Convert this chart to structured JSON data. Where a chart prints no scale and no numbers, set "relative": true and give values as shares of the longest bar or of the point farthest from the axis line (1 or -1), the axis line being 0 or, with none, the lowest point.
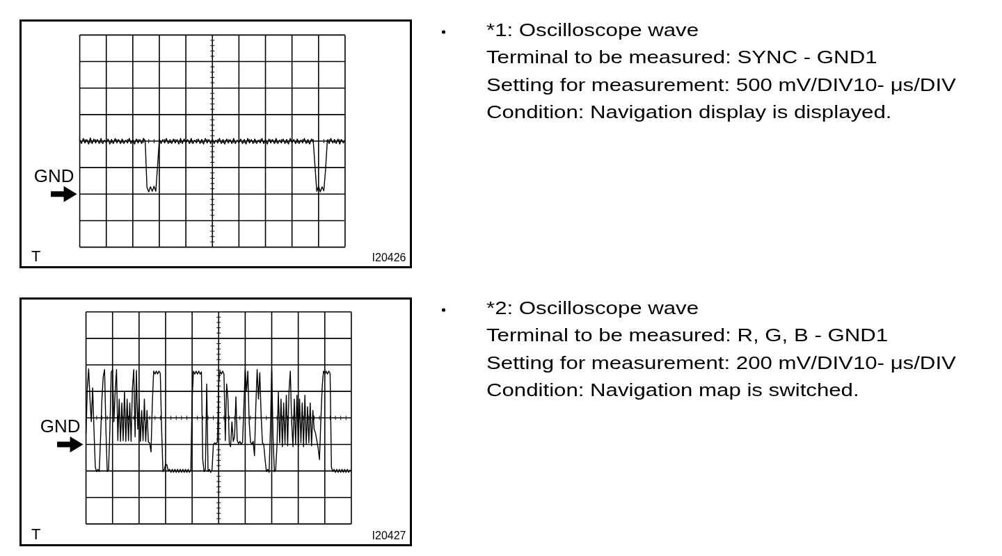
{
  "chart_data": [
    {
      "type": "line",
      "annotations": [
        "GND",
        "*1: Oscilloscope wave",
        "Terminal to be measured: SYNC - GND1",
        "Setting for measurement: 500 mV/DIV10- μs/DIV",
        "Condition: Navigation display is displayed.",
        "T",
        "I20426"
      ],
      "relative": true,
      "grid": true,
      "categories": [
        null,
        null,
        null,
        null,
        null,
        null,
        null,
        null,
        null,
        null,
        null,
        null,
        null,
        null,
        null,
        null,
        null,
        null,
        null,
        null,
        null,
        null,
        null,
        null,
        null,
        null,
        null,
        null,
        null,
        null,
        null,
        null,
        null,
        null,
        null,
        null,
        null,
        null,
        null,
        null,
        null,
        null,
        null,
        null,
        null,
        null,
        null,
        null,
        null,
        null,
        null,
        null,
        null,
        null,
        null,
        null,
        null,
        null,
        null,
        null,
        null,
        null,
        null,
        null,
        null,
        null,
        null,
        null,
        null,
        null,
        null,
        null,
        null,
        null,
        null,
        null,
        null,
        null,
        null,
        null,
        null,
        null,
        null,
        null,
        null,
        null,
        null,
        null,
        null,
        null,
        null,
        null,
        null,
        null,
        null,
        null,
        null,
        null,
        null,
        null,
        null,
        null,
        null,
        null,
        null,
        null,
        null,
        null,
        null,
        null,
        null,
        null,
        null,
        null,
        null,
        null,
        null,
        null,
        null,
        null,
        null,
        null,
        null,
        null,
        null,
        null,
        null,
        null,
        null,
        null,
        null,
        null,
        null,
        null,
        null,
        null,
        null,
        null,
        null,
        null,
        null,
        null,
        null,
        null,
        null,
        null,
        null,
        null,
        null,
        null,
        null
      ],
      "series": [
        {
          "color": "#000000",
          "values": [
            0.96,
            0.9,
            0.99,
            0.91,
            0.97,
            0.89,
            1,
            0.9,
            0.98,
            0.91,
            0.97,
            0.9,
            0.99,
            0.9,
            0.96,
            0.91,
            0.98,
            0.89,
            0.97,
            0.9,
            0.99,
            0.91,
            0.97,
            0.9,
            0.98,
            0.9,
            0.96,
            0.91,
            0.99,
            0.9,
            0.97,
            0.89,
            0.98,
            0.91,
            0.97,
            0.9,
            0.99,
            0.95,
            0.12,
            0.04,
            0.13,
            0.05,
            0.14,
            0.05,
            0.5,
            0.98,
            0.9,
            0.97,
            0.91,
            0.99,
            0.9,
            0.96,
            0.9,
            0.98,
            0.91,
            0.97,
            0.89,
            0.99,
            0.9,
            0.98,
            0.91,
            0.97,
            0.9,
            0.99,
            0.9,
            0.96,
            0.91,
            0.98,
            0.9,
            0.97,
            0.89,
            0.99,
            0.91,
            0.97,
            0.9,
            0.98,
            0.9,
            0.96,
            0.91,
            0.99,
            0.9,
            0.97,
            0.89,
            0.98,
            0.91,
            0.97,
            0.9,
            0.99,
            0.9,
            0.96,
            0.91,
            0.98,
            0.9,
            0.97,
            0.89,
            0.99,
            0.91,
            0.97,
            0.9,
            0.98,
            0.9,
            0.96,
            0.91,
            0.99,
            0.9,
            0.97,
            0.89,
            0.98,
            0.91,
            0.97,
            0.9,
            0.99,
            0.9,
            0.96,
            0.91,
            0.98,
            0.9,
            0.97,
            0.89,
            0.99,
            0.91,
            0.97,
            0.9,
            0.98,
            0.9,
            0.96,
            0.91,
            0.99,
            0.9,
            0.97,
            0.89,
            0.98,
            0.95,
            0.5,
            0.05,
            0.14,
            0.04,
            0.13,
            0.06,
            0.45,
            0.97,
            0.9,
            0.99,
            0.91,
            0.97,
            0.9,
            0.98,
            0.89,
            0.97,
            0.91,
            0.96
          ]
        }
      ]
    },
    {
      "type": "line",
      "annotations": [
        "*2: Oscilloscope wave",
        "Terminal to be measured: R, G, B - GND1",
        "Setting for measurement: 200 mV/DIV10- μs/DIV",
        "Condition: Navigation map is switched.",
        "T",
        "I20427"
      ],
      "relative": true,
      "grid": true,
      "ref_lines": [
        {
          "axis": "y",
          "value": 0,
          "label": "GND"
        }
      ],
      "categories": [
        null,
        null,
        null,
        null,
        null,
        null,
        null,
        null,
        null,
        null,
        null,
        null,
        null,
        null,
        null,
        null,
        null,
        null,
        null,
        null,
        null,
        null,
        null,
        null,
        null,
        null,
        null,
        null,
        null,
        null,
        null,
        null,
        null,
        null,
        null,
        null,
        null,
        null,
        null,
        null,
        null,
        null,
        null,
        null,
        null,
        null,
        null,
        null,
        null,
        null,
        null,
        null,
        null,
        null,
        null,
        null,
        null,
        null,
        null,
        null,
        null,
        null,
        null,
        null,
        null,
        null,
        null,
        null,
        null,
        null,
        null,
        null,
        null,
        null,
        null,
        null,
        null,
        null,
        null,
        null,
        null,
        null,
        null,
        null,
        null,
        null,
        null,
        null,
        null,
        null,
        null,
        null,
        null,
        null,
        null,
        null,
        null,
        null,
        null,
        null,
        null,
        null,
        null,
        null,
        null,
        null,
        null,
        null,
        null,
        null,
        null,
        null,
        null,
        null,
        null,
        null,
        null,
        null,
        null,
        null,
        null,
        null,
        null,
        null,
        null,
        null,
        null,
        null,
        null,
        null,
        null,
        null,
        null,
        null,
        null,
        null,
        null,
        null,
        null,
        null,
        null,
        null,
        null,
        null,
        null,
        null,
        null,
        null,
        null,
        null,
        null,
        null,
        null,
        null,
        null,
        null,
        null,
        null,
        null,
        null,
        null,
        null,
        null,
        null,
        null,
        null,
        null,
        null,
        null,
        null,
        null,
        null,
        null,
        null,
        null,
        null,
        null,
        null,
        null,
        null,
        null,
        null,
        null,
        null,
        null,
        null,
        null,
        null,
        null,
        null,
        null,
        null,
        null,
        null,
        null,
        null,
        null,
        null,
        null,
        null,
        null
      ],
      "series": [
        {
          "color": "#000000",
          "values": [
            0.15,
            0.75,
            1,
            0.6,
            0.3,
            0.75,
            0.2,
            -0.3,
            -0.36,
            -0.33,
            -0.36,
            0.1,
            0.6,
            0.9,
            0.99,
            0.2,
            -0.36,
            -0.34,
            0.2,
            0.95,
            0.99,
            0.3,
            0.7,
            0.99,
            0.05,
            0.6,
            0.04,
            0.55,
            0.05,
            0.7,
            0.04,
            0.6,
            0.05,
            0.55,
            0.04,
            0.75,
            0.99,
            0.1,
            0.98,
            0.2,
            0.6,
            0.04,
            0.45,
            0.05,
            0.6,
            0.04,
            0.45,
            0.03,
            0.02,
            -0.1,
            0.55,
            0.97,
            0.93,
            0.97,
            0.93,
            0.97,
            0.94,
            0.2,
            -0.36,
            -0.33,
            -0.26,
            -0.27,
            -0.35,
            -0.33,
            -0.37,
            -0.33,
            -0.37,
            -0.33,
            -0.37,
            -0.33,
            -0.37,
            -0.33,
            -0.37,
            -0.33,
            -0.37,
            -0.33,
            -0.37,
            -0.33,
            -0.37,
            -0.34,
            0.6,
            0.97,
            0.93,
            0.97,
            0.93,
            0.97,
            0.93,
            0.96,
            -0.2,
            -0.36,
            -0.33,
            0.8,
            -0.36,
            -0.33,
            -0.37,
            -0.34,
            0,
            0.02,
            0.01,
            0.03,
            0.8,
            0.97,
            0.93,
            0.97,
            0.93,
            0.05,
            0.8,
            0.6,
            0.02,
            -0.03,
            0.3,
            0.04,
            0.1,
            0.63,
            0.05,
            0.01,
            0.04,
            0,
            0.03,
            0.5,
            0.99,
            0.7,
            0.97,
            0.3,
            0.03,
            0,
            0.04,
            -0.15,
            0.5,
            0.99,
            0.6,
            0.95,
            0.4,
            0.02,
            0,
            -0.2,
            -0.36,
            -0.33,
            -0.37,
            0.2,
            0.99,
            0.1,
            -0.36,
            -0.33,
            0,
            0.7,
            0.02,
            0.6,
            -0.03,
            0.55,
            0.01,
            0.65,
            -0.02,
            0.7,
            0.97,
            0.3,
            -0.03,
            0.6,
            0,
            0.65,
            -0.03,
            0.6,
            0.02,
            0.55,
            -0.03,
            0.65,
            0,
            0.5,
            0.02,
            0.55,
            -0.02,
            0.45,
            0.2,
            0.15,
            0.05,
            -0.05,
            -0.2,
            0.3,
            0.75,
            0.97,
            0.93,
            0.97,
            0.93,
            0.97,
            0.94,
            -0.3,
            -0.36,
            -0.33,
            -0.37,
            -0.33,
            -0.37,
            -0.33,
            -0.37,
            -0.33,
            -0.37,
            -0.33,
            -0.37,
            -0.33,
            -0.37,
            -0.34,
            -0.36
          ]
        }
      ]
    }
  ]
}
